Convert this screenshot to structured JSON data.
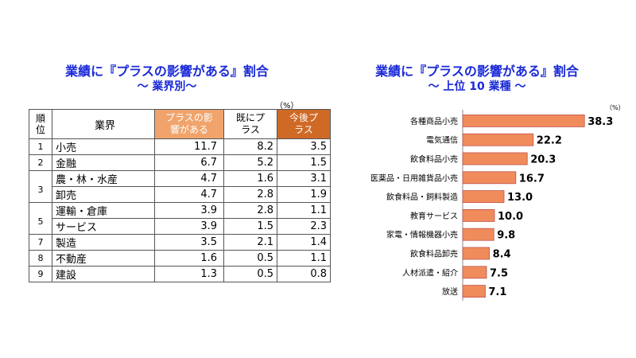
{
  "left": {
    "title_line1": "業績に『プラスの影響がある』割合",
    "title_line2": "～ 業界別～",
    "unit": "（%）",
    "headers": {
      "rank": "順位",
      "industry": "業界",
      "plus": "プラスの影響がある",
      "already": "既にプラス",
      "future": "今後プラス"
    },
    "rows": [
      {
        "rank": "1",
        "name": "小売",
        "plus": "11.7",
        "already": "8.2",
        "future": "3.5"
      },
      {
        "rank": "2",
        "name": "金融",
        "plus": "6.7",
        "already": "5.2",
        "future": "1.5"
      },
      {
        "rank": "3",
        "name": "農・林・水産",
        "plus": "4.7",
        "already": "1.6",
        "future": "3.1"
      },
      {
        "rank": "",
        "name": "卸売",
        "plus": "4.7",
        "already": "2.8",
        "future": "1.9"
      },
      {
        "rank": "5",
        "name": "運輸・倉庫",
        "plus": "3.9",
        "already": "2.8",
        "future": "1.1"
      },
      {
        "rank": "",
        "name": "サービス",
        "plus": "3.9",
        "already": "1.5",
        "future": "2.3"
      },
      {
        "rank": "7",
        "name": "製造",
        "plus": "3.5",
        "already": "2.1",
        "future": "1.4"
      },
      {
        "rank": "8",
        "name": "不動産",
        "plus": "1.6",
        "already": "0.5",
        "future": "1.1"
      },
      {
        "rank": "9",
        "name": "建設",
        "plus": "1.3",
        "already": "0.5",
        "future": "0.8"
      }
    ]
  },
  "chart_data": {
    "type": "bar",
    "orientation": "horizontal",
    "title": "業績に『プラスの影響がある』割合 ～ 上位 10 業種 ～",
    "unit": "（%）",
    "categories": [
      "各種商品小売",
      "電気通信",
      "飲食料品小売",
      "医薬品・日用雑貨品小売",
      "飲食料品・飼料製造",
      "教育サービス",
      "家電・情報機器小売",
      "飲食料品卸売",
      "人材派遣・紹介",
      "放送"
    ],
    "values": [
      38.3,
      22.2,
      20.3,
      16.7,
      13.0,
      10.0,
      9.8,
      8.4,
      7.5,
      7.1
    ],
    "value_labels": [
      "38.3",
      "22.2",
      "20.3",
      "16.7",
      "13.0",
      "10.0",
      "9.8",
      "8.4",
      "7.5",
      "7.1"
    ],
    "xlim": [
      0,
      40
    ],
    "bar_color": "#f08c5c",
    "bar_edge_color": "#c0504d"
  },
  "right": {
    "title_line1": "業績に『プラスの影響がある』割合",
    "title_line2": "～ 上位 10 業種 ～"
  }
}
